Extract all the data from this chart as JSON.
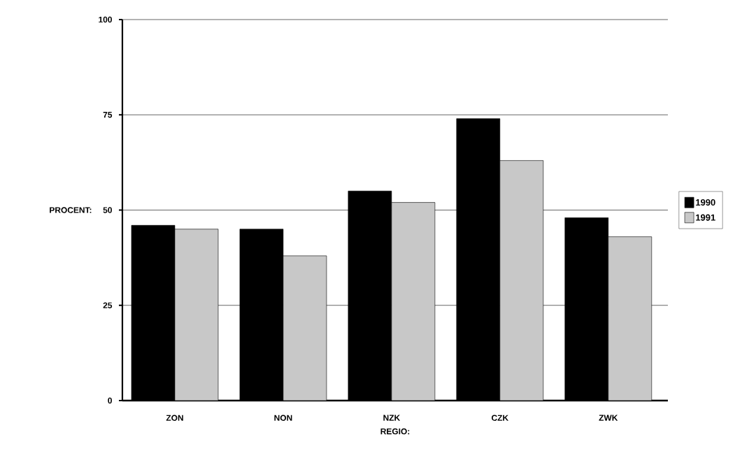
{
  "chart_data": {
    "type": "bar",
    "xlabel": "REGIO:",
    "ylabel": "PROCENT:",
    "categories": [
      "ZON",
      "NON",
      "NZK",
      "CZK",
      "ZWK"
    ],
    "series": [
      {
        "name": "1990",
        "color": "#000000",
        "values": [
          46,
          45,
          55,
          74,
          48
        ]
      },
      {
        "name": "1991",
        "color": "#c8c8c8",
        "values": [
          45,
          38,
          52,
          63,
          43
        ]
      }
    ],
    "ylim": [
      0,
      100
    ],
    "yticks": [
      0,
      25,
      50,
      75,
      100
    ],
    "grid": "y",
    "legend": "right"
  }
}
